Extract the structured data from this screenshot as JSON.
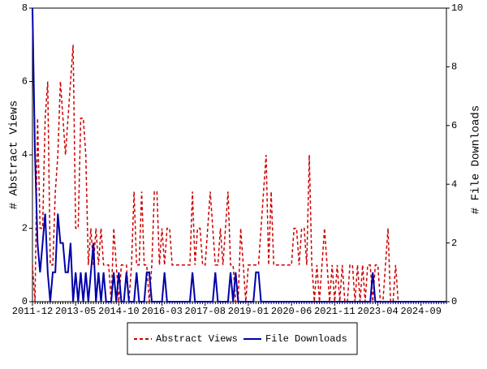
{
  "chart_data": {
    "type": "line",
    "y_label": "# Abstract Views",
    "y2_label": "# File Downloads",
    "categories": [
      "2011-12",
      null,
      null,
      null,
      null,
      null,
      null,
      null,
      null,
      null,
      null,
      null,
      null,
      null,
      null,
      null,
      null,
      "2013-05",
      null,
      null,
      null,
      null,
      null,
      null,
      null,
      null,
      null,
      null,
      null,
      null,
      null,
      null,
      null,
      null,
      "2014-10",
      null,
      null,
      null,
      null,
      null,
      null,
      null,
      null,
      null,
      null,
      null,
      null,
      null,
      null,
      null,
      null,
      "2016-03",
      null,
      null,
      null,
      null,
      null,
      null,
      null,
      null,
      null,
      null,
      null,
      null,
      null,
      null,
      null,
      null,
      "2017-08",
      null,
      null,
      null,
      null,
      null,
      null,
      null,
      null,
      null,
      null,
      null,
      null,
      null,
      null,
      null,
      null,
      "2019-01",
      null,
      null,
      null,
      null,
      null,
      null,
      null,
      null,
      null,
      null,
      null,
      null,
      null,
      null,
      null,
      null,
      "2020-06",
      null,
      null,
      null,
      null,
      null,
      null,
      null,
      null,
      null,
      null,
      null,
      null,
      null,
      null,
      null,
      null,
      "2021-11",
      null,
      null,
      null,
      null,
      null,
      null,
      null,
      null,
      null,
      null,
      null,
      null,
      null,
      null,
      null,
      null,
      "2023-04",
      null,
      null,
      null,
      null,
      null,
      null,
      null,
      null,
      null,
      null,
      null,
      null,
      null,
      null,
      null,
      null,
      "2024-09",
      null,
      null,
      null,
      null,
      null,
      null,
      null,
      null,
      null,
      null
    ],
    "series": [
      {
        "name": "Abstract Views",
        "color": "#cc0000",
        "dashed": true,
        "values": [
          1,
          0,
          5,
          2,
          2,
          5,
          6,
          1,
          1,
          3,
          4,
          6,
          5,
          4,
          5,
          6,
          7,
          2,
          2,
          5,
          5,
          4,
          1,
          2,
          1,
          2,
          1,
          2,
          1,
          1,
          1,
          0,
          2,
          1,
          0,
          1,
          1,
          1,
          0,
          1,
          3,
          1,
          1,
          3,
          1,
          1,
          0,
          1,
          3,
          3,
          1,
          2,
          1,
          2,
          2,
          1,
          1,
          1,
          1,
          1,
          1,
          1,
          1,
          3,
          1,
          2,
          2,
          1,
          1,
          2,
          3,
          2,
          1,
          1,
          2,
          1,
          2,
          3,
          1,
          1,
          0,
          0,
          2,
          1,
          0,
          1,
          1,
          1,
          1,
          1,
          2,
          3,
          4,
          1,
          3,
          1,
          1,
          1,
          1,
          1,
          1,
          1,
          1,
          2,
          2,
          1,
          2,
          2,
          1,
          4,
          1,
          0,
          1,
          0,
          1,
          2,
          1,
          0,
          1,
          0,
          1,
          0,
          1,
          0,
          0,
          1,
          1,
          0,
          1,
          0,
          1,
          0,
          1,
          1,
          0,
          1,
          1,
          0,
          0,
          1,
          2,
          0,
          0,
          1,
          0,
          0,
          0,
          0,
          0,
          0,
          0,
          0,
          0,
          0,
          0,
          0,
          0,
          0,
          0,
          0,
          0,
          0,
          0,
          0
        ]
      },
      {
        "name": "File Downloads",
        "color": "#0000aa",
        "dashed": false,
        "axis": "y2",
        "values": [
          10,
          5,
          2,
          1,
          2,
          3,
          1,
          0,
          1,
          1,
          3,
          2,
          2,
          1,
          1,
          2,
          0,
          1,
          0,
          1,
          0,
          1,
          0,
          1,
          2,
          0,
          1,
          0,
          1,
          0,
          0,
          0,
          1,
          0,
          1,
          0,
          0,
          1,
          0,
          0,
          0,
          1,
          0,
          0,
          0,
          1,
          1,
          0,
          0,
          0,
          0,
          0,
          1,
          0,
          0,
          0,
          0,
          0,
          0,
          0,
          0,
          0,
          0,
          1,
          0,
          0,
          0,
          0,
          0,
          0,
          0,
          0,
          1,
          0,
          0,
          0,
          0,
          0,
          1,
          0,
          1,
          0,
          0,
          0,
          0,
          0,
          0,
          0,
          1,
          1,
          0,
          0,
          0,
          0,
          0,
          0,
          0,
          0,
          0,
          0,
          0,
          0,
          0,
          0,
          0,
          0,
          0,
          0,
          0,
          0,
          0,
          0,
          0,
          0,
          0,
          0,
          0,
          0,
          0,
          0,
          0,
          0,
          0,
          0,
          0,
          0,
          0,
          0,
          0,
          0,
          0,
          0,
          0,
          0,
          1,
          0,
          0,
          0,
          0,
          0,
          0,
          0,
          0,
          0,
          0,
          0,
          0,
          0,
          0,
          0,
          0,
          0,
          0,
          0,
          0,
          0,
          0,
          0,
          0,
          0,
          0,
          0,
          0,
          0
        ]
      }
    ],
    "ylim": [
      0,
      8
    ],
    "yticks": [
      0,
      2,
      4,
      6,
      8
    ],
    "y2lim": [
      0,
      10
    ],
    "y2ticks": [
      0,
      2,
      4,
      6,
      8,
      10
    ]
  }
}
